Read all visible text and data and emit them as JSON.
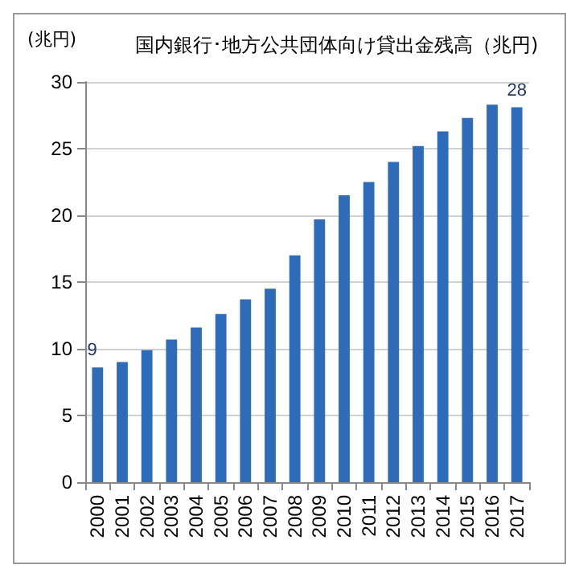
{
  "chart_data": {
    "type": "bar",
    "title": "国内銀行･地方公共団体向け貸出金残高（兆円)",
    "ylabel": "(兆円)",
    "categories": [
      "2000",
      "2001",
      "2002",
      "2003",
      "2004",
      "2005",
      "2006",
      "2007",
      "2008",
      "2009",
      "2010",
      "2011",
      "2012",
      "2013",
      "2014",
      "2015",
      "2016",
      "2017"
    ],
    "values": [
      8.6,
      9.0,
      9.9,
      10.7,
      11.6,
      12.6,
      13.7,
      14.5,
      17.0,
      19.7,
      21.5,
      22.5,
      24.0,
      25.2,
      26.3,
      27.3,
      28.3,
      28.1
    ],
    "value_labels": [
      "9",
      null,
      null,
      null,
      null,
      null,
      null,
      null,
      null,
      null,
      null,
      null,
      null,
      null,
      null,
      null,
      null,
      "28"
    ],
    "color": "#2e6bb8",
    "ylim": [
      0,
      30
    ],
    "yticks": [
      0,
      5,
      10,
      15,
      20,
      25,
      30
    ],
    "grid": "y"
  }
}
